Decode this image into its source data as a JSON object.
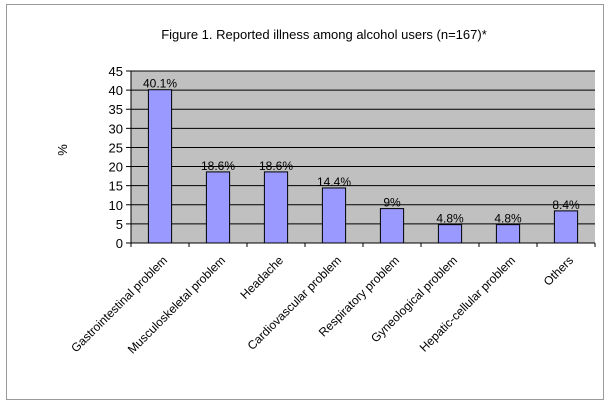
{
  "chart_data": {
    "type": "bar",
    "title": "Figure 1. Reported illness among alcohol users (n=167)*",
    "xlabel": "",
    "ylabel": "%",
    "ylim": [
      0,
      45
    ],
    "yticks": [
      0,
      5,
      10,
      15,
      20,
      25,
      30,
      35,
      40,
      45
    ],
    "grid": true,
    "legend": "none",
    "categories": [
      "Gastrointestinal problem",
      "Musculoskeletal problem",
      "Headache",
      "Cardiovascular problem",
      "Respiratory problem",
      "Gyneological problem",
      "Hepatic-cellular problem",
      "Others"
    ],
    "values": [
      40.1,
      18.6,
      18.6,
      14.4,
      9,
      4.8,
      4.8,
      8.4
    ],
    "value_labels": [
      "40.1%",
      "18.6%",
      "18.6%",
      "14.4%",
      "9%",
      "4.8%",
      "4.8%",
      "8.4%"
    ],
    "colors": {
      "plot_background": "#c0c0c0",
      "bar_fill": "#9999ff",
      "bar_stroke": "#000000",
      "gridline": "#000000"
    }
  }
}
